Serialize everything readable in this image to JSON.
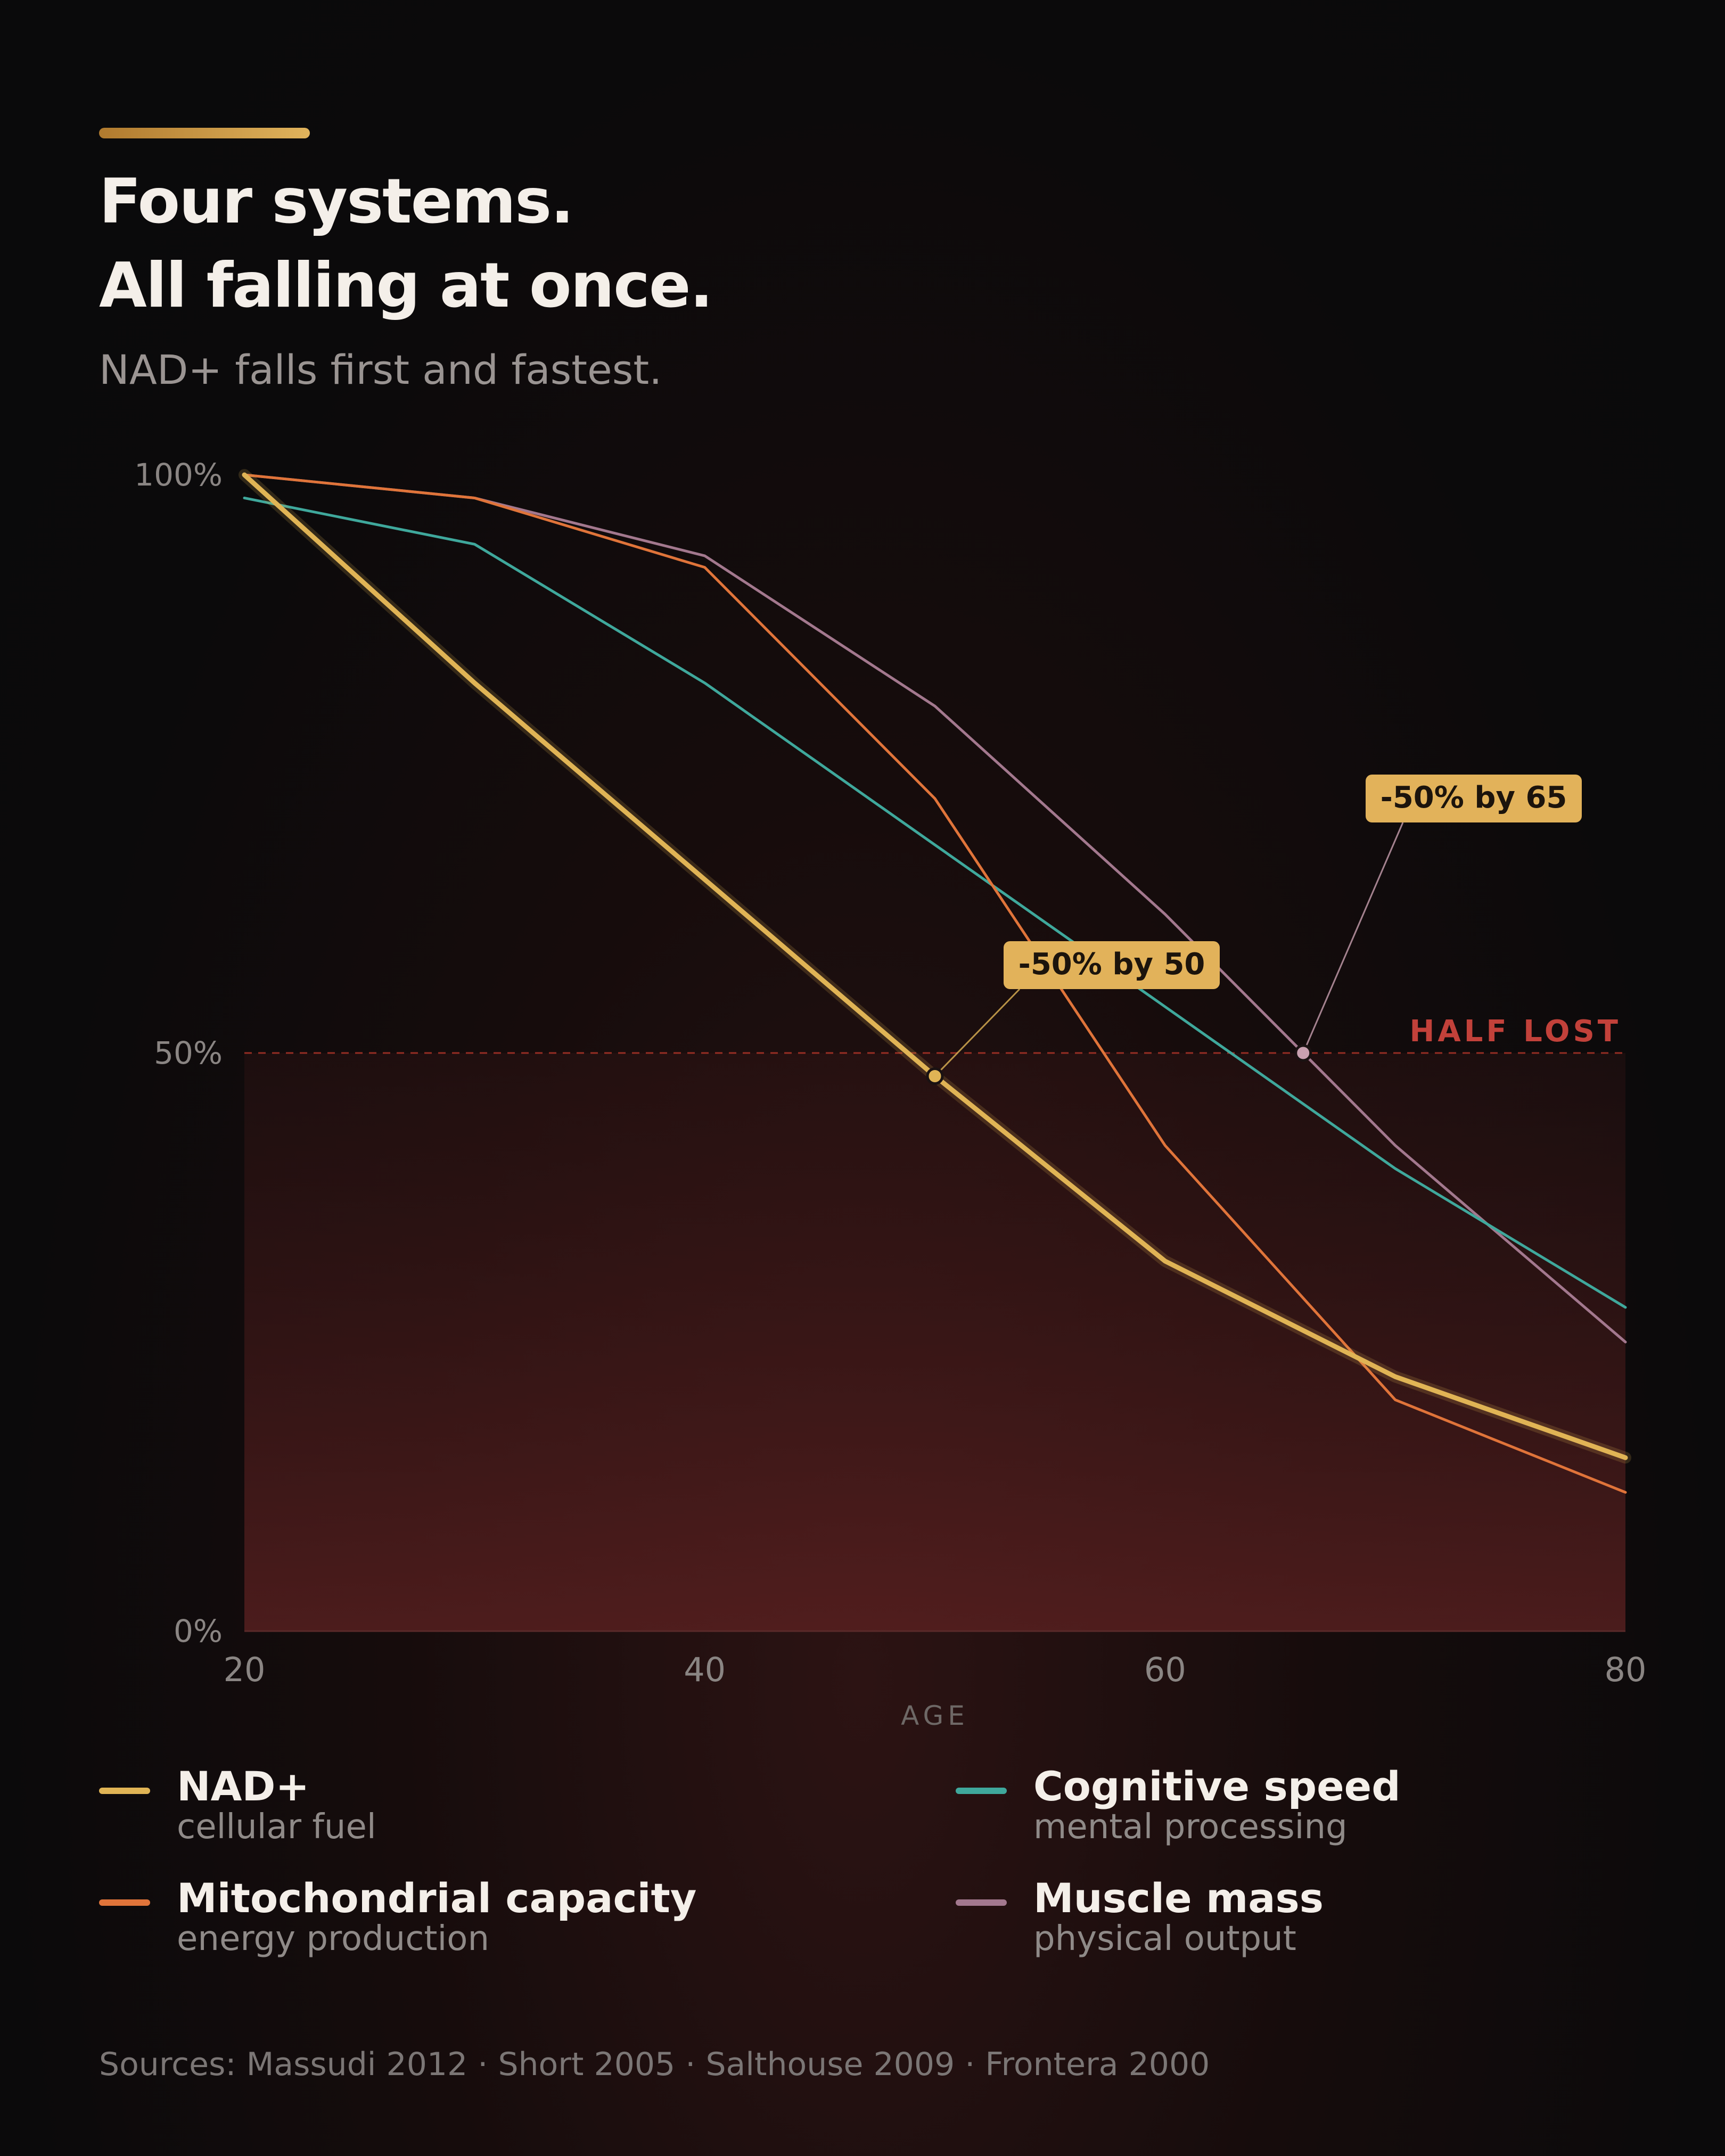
{
  "header": {
    "title_line1": "Four systems.",
    "title_line2": "All falling at once.",
    "subtitle": "NAD+ falls first and fastest."
  },
  "chart_data": {
    "type": "line",
    "title": "Four systems. All falling at once.",
    "subtitle": "NAD+ falls first and fastest.",
    "xlabel": "AGE",
    "ylabel": "",
    "xlim": [
      20,
      80
    ],
    "ylim": [
      0,
      100
    ],
    "x_ticks": [
      "20",
      "40",
      "60",
      "80"
    ],
    "y_ticks": [
      "100%",
      "50%",
      "0%"
    ],
    "x": [
      20,
      30,
      40,
      50,
      60,
      70,
      80
    ],
    "series": [
      {
        "name": "NAD+",
        "subtitle": "cellular fuel",
        "color": "#e0b455",
        "values": [
          100,
          82,
          65,
          48,
          32,
          22,
          15
        ]
      },
      {
        "name": "Mitochondrial capacity",
        "subtitle": "energy production",
        "color": "#e0743a",
        "values": [
          100,
          98,
          92,
          72,
          42,
          20,
          12
        ]
      },
      {
        "name": "Cognitive speed",
        "subtitle": "mental processing",
        "color": "#3fa89c",
        "values": [
          98,
          94,
          82,
          68,
          54,
          40,
          28
        ]
      },
      {
        "name": "Muscle mass",
        "subtitle": "physical output",
        "color": "#a3788e",
        "values": [
          100,
          98,
          93,
          80,
          62,
          42,
          25
        ]
      }
    ],
    "threshold": {
      "value": 50,
      "label": "HALF LOST",
      "color": "#c0392b"
    },
    "annotations": [
      {
        "text": "-50% by 50",
        "series": "NAD+",
        "x": 50,
        "y": 48,
        "dot_color": "#e0b455"
      },
      {
        "text": "-50% by 65",
        "series": "Muscle mass",
        "x": 66,
        "y": 50,
        "dot_color": "#c9a0b0"
      }
    ],
    "grid": false,
    "legend_position": "bottom"
  },
  "sources": "Sources: Massudi 2012 · Short 2005 · Salthouse 2009 · Frontera 2000"
}
